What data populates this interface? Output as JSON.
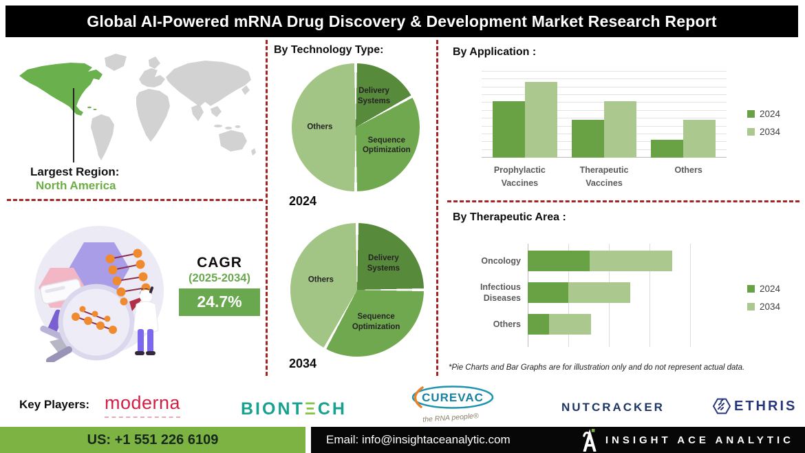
{
  "title": "Global AI-Powered mRNA Drug Discovery & Development Market Research Report",
  "region": {
    "label": "Largest Region:",
    "value": "North America"
  },
  "cagr": {
    "label": "CAGR",
    "period": "(2025-2034)",
    "value": "24.7%"
  },
  "tech": {
    "title": "By Technology Type:"
  },
  "note": "*Pie Charts and Bar Graphs are for illustration only and do not represent actual data.",
  "players": {
    "label": "Key Players:",
    "moderna": "moderna",
    "biontech": "BIONTECH",
    "curevac": "CUREVAC",
    "curevac_tagline": "the RNA people®",
    "nutcracker": "NUTCRACKER",
    "ethris": "ETHRIS"
  },
  "footer": {
    "phone": "US: +1 551 226 6109",
    "email": "Email: info@insightaceanalytic.com",
    "brand": "INSIGHT ACE ANALYTIC"
  },
  "colors": {
    "series_2024": "#69a244",
    "series_2034": "#abc98e",
    "pie_delivery": "#578a3a",
    "pie_sequence": "#6fa84e",
    "pie_others": "#a2c585",
    "map_highlight": "#6ab04c",
    "map_base": "#d2d2d2",
    "divider_red": "#a32424",
    "cagr_green": "#69a84e",
    "footer_green": "#7cb342",
    "region_green": "#6cae45"
  },
  "chart_data": [
    {
      "type": "pie",
      "title": "By Technology Type:",
      "year": "2024",
      "labels": [
        "Delivery Systems",
        "Sequence Optimization",
        "Others"
      ],
      "values": [
        17,
        33,
        50
      ],
      "colors": [
        "#578a3a",
        "#6fa84e",
        "#a2c585"
      ]
    },
    {
      "type": "pie",
      "title": "By Technology Type:",
      "year": "2034",
      "labels": [
        "Delivery Systems",
        "Sequence Optimization",
        "Others"
      ],
      "values": [
        25,
        33,
        42
      ],
      "colors": [
        "#578a3a",
        "#6fa84e",
        "#a2c585"
      ]
    },
    {
      "type": "bar",
      "title": "By Application :",
      "categories": [
        "Prophylactic Vaccines",
        "Therapeutic Vaccines",
        "Others"
      ],
      "series": [
        {
          "name": "2024",
          "values": [
            72,
            48,
            23
          ]
        },
        {
          "name": "2034",
          "values": [
            97,
            72,
            48
          ]
        }
      ],
      "colors": [
        "#69a244",
        "#abc98e"
      ],
      "ylim": [
        0,
        110
      ],
      "grid": true,
      "legend_position": "right"
    },
    {
      "type": "bar",
      "orientation": "horizontal-stacked",
      "title": "By Therapeutic Area :",
      "categories": [
        "Oncology",
        "Infectious Diseases",
        "Others"
      ],
      "series": [
        {
          "name": "2024",
          "values": [
            38,
            25,
            13
          ]
        },
        {
          "name": "2034",
          "values": [
            51,
            38,
            26
          ]
        }
      ],
      "colors": [
        "#69a244",
        "#abc98e"
      ],
      "xlim": [
        0,
        100
      ],
      "grid": true,
      "legend_position": "right"
    }
  ]
}
